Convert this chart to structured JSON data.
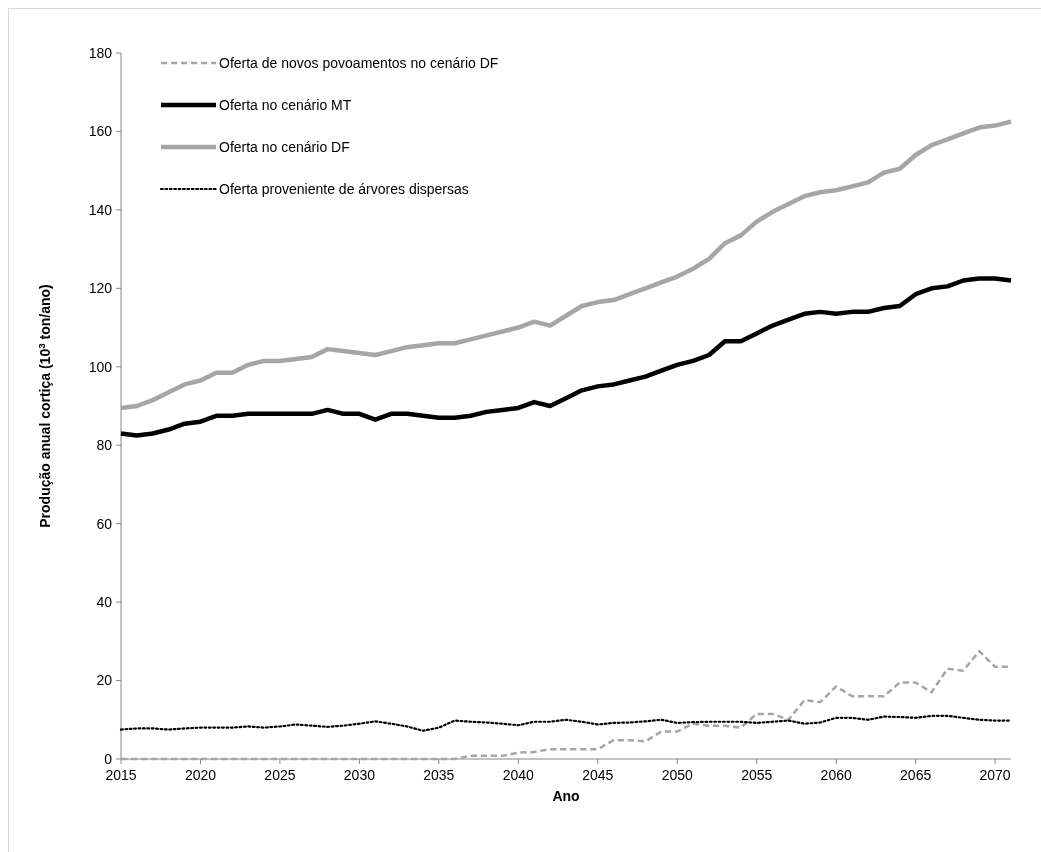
{
  "chart_data": {
    "type": "line",
    "xlabel": "Ano",
    "ylabel": "Produção anual cortiça (10$^{3}$ ton/ano)",
    "x": [
      2015,
      2016,
      2017,
      2018,
      2019,
      2020,
      2021,
      2022,
      2023,
      2024,
      2025,
      2026,
      2027,
      2028,
      2029,
      2030,
      2031,
      2032,
      2033,
      2034,
      2035,
      2036,
      2037,
      2038,
      2039,
      2040,
      2041,
      2042,
      2043,
      2044,
      2045,
      2046,
      2047,
      2048,
      2049,
      2050,
      2051,
      2052,
      2053,
      2054,
      2055,
      2056,
      2057,
      2058,
      2059,
      2060,
      2061,
      2062,
      2063,
      2064,
      2065,
      2066,
      2067,
      2068,
      2069,
      2070,
      2071
    ],
    "series": [
      {
        "name": "Oferta de novos povoamentos no cenário DF",
        "color": "#a6a6a6",
        "line_style": "dashed",
        "values": [
          0,
          0,
          0,
          0,
          0,
          0,
          0,
          0,
          0,
          0,
          0,
          0,
          0,
          0,
          0,
          0,
          0,
          0,
          0,
          0,
          0,
          0,
          0.8,
          0.8,
          0.8,
          1.6,
          1.8,
          2.5,
          2.5,
          2.5,
          2.5,
          4.8,
          4.8,
          4.5,
          7,
          7,
          9,
          8.5,
          8.5,
          8,
          11.5,
          11.5,
          10,
          15,
          14.5,
          18.5,
          16,
          16,
          16,
          19.5,
          19.5,
          17,
          23,
          22.5,
          27.5,
          23.5,
          23.5
        ]
      },
      {
        "name": "Oferta no cenário MT",
        "color": "#000000",
        "line_style": "solid",
        "values": [
          83,
          82.5,
          83,
          84,
          85.5,
          86,
          87.5,
          87.5,
          88,
          88,
          88,
          88,
          88,
          89,
          88,
          88,
          86.5,
          88,
          88,
          87.5,
          87,
          87,
          87.5,
          88.5,
          89,
          89.5,
          91,
          90,
          92,
          94,
          95,
          95.5,
          96.5,
          97.5,
          99,
          100.5,
          101.5,
          103,
          106.5,
          106.5,
          108.5,
          110.5,
          112,
          113.5,
          114,
          113.5,
          114,
          114,
          115,
          115.5,
          118.5,
          120,
          120.5,
          122,
          122.5,
          122.5,
          122
        ]
      },
      {
        "name": "Oferta no cenário DF",
        "color": "#a6a6a6",
        "line_style": "solid",
        "values": [
          89.5,
          90,
          91.5,
          93.5,
          95.5,
          96.5,
          98.5,
          98.5,
          100.5,
          101.5,
          101.5,
          102,
          102.5,
          104.5,
          104,
          103.5,
          103,
          104,
          105,
          105.5,
          106,
          106,
          107,
          108,
          109,
          110,
          111.5,
          110.5,
          113,
          115.5,
          116.5,
          117,
          118.5,
          120,
          121.5,
          123,
          125,
          127.5,
          131.5,
          133.5,
          137,
          139.5,
          141.5,
          143.5,
          144.5,
          145,
          146,
          147,
          149.5,
          150.5,
          154,
          156.5,
          158,
          159.5,
          161,
          161.5,
          162.5
        ]
      },
      {
        "name": "Oferta proveniente de árvores dispersas",
        "color": "#000000",
        "line_style": "dotted",
        "values": [
          7.5,
          7.8,
          7.8,
          7.5,
          7.8,
          8,
          8,
          8,
          8.3,
          8,
          8.3,
          8.8,
          8.5,
          8.2,
          8.5,
          9,
          9.6,
          9,
          8.3,
          7.2,
          8,
          9.8,
          9.5,
          9.3,
          9,
          8.6,
          9.5,
          9.5,
          10,
          9.5,
          8.8,
          9.2,
          9.3,
          9.6,
          10,
          9.2,
          9.4,
          9.5,
          9.5,
          9.5,
          9.2,
          9.5,
          9.8,
          9,
          9.3,
          10.5,
          10.5,
          10,
          10.8,
          10.7,
          10.5,
          11,
          11,
          10.5,
          10,
          9.8,
          9.8
        ]
      }
    ],
    "xlim": [
      2015,
      2071
    ],
    "xticks": [
      2015,
      2020,
      2025,
      2030,
      2035,
      2040,
      2045,
      2050,
      2055,
      2060,
      2065,
      2070
    ],
    "ylim": [
      0,
      180
    ],
    "yticks": [
      0,
      20,
      40,
      60,
      80,
      100,
      120,
      140,
      160,
      180
    ],
    "grid": false,
    "legend": "top left"
  }
}
